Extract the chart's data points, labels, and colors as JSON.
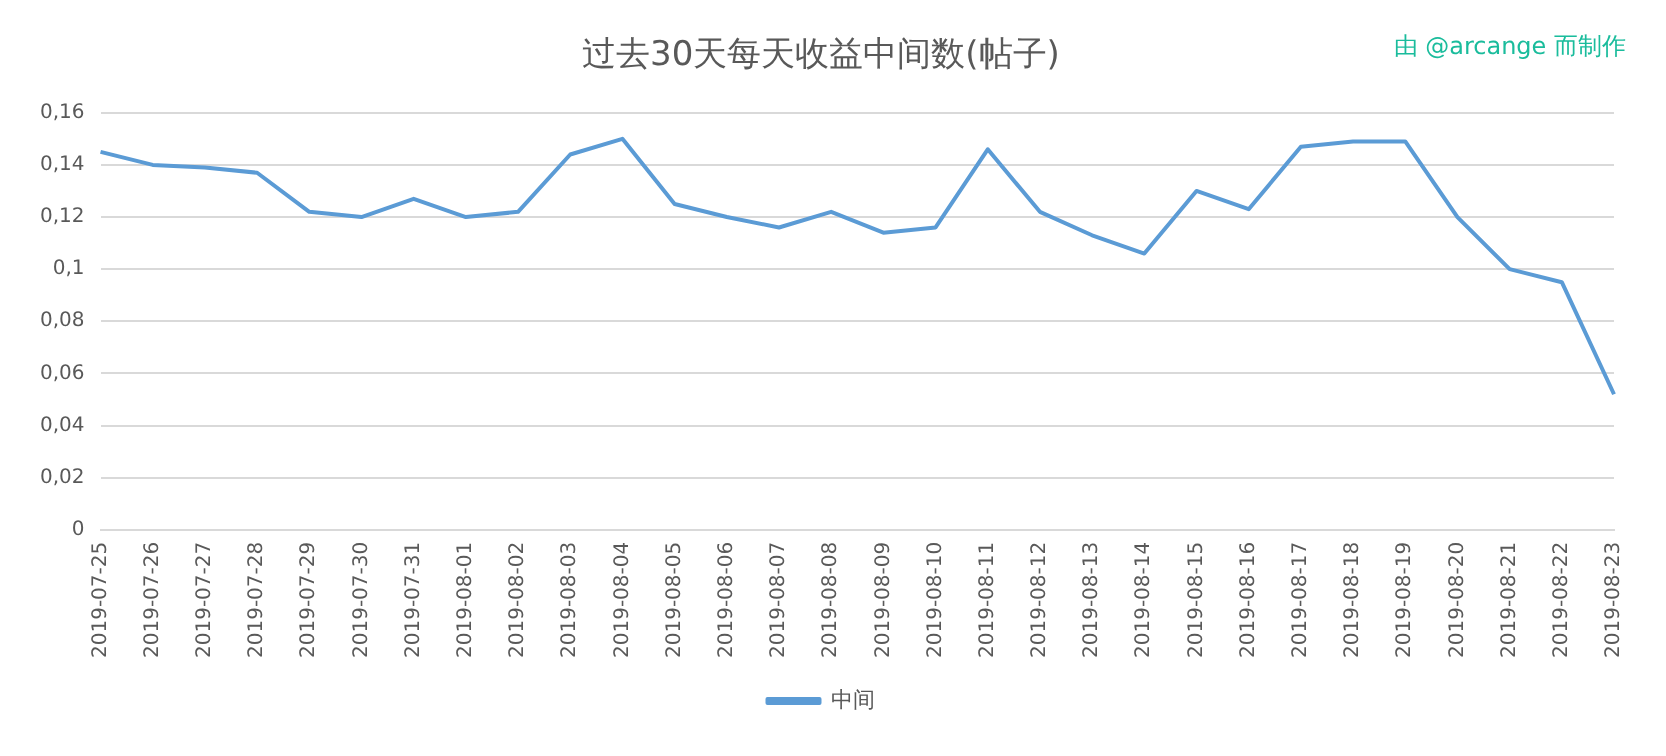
{
  "chart_data": {
    "type": "line",
    "title": "过去30天每天收益中间数(帖子)",
    "annotations": [
      "由 @arcange 而制作"
    ],
    "categories": [
      "2019-07-25",
      "2019-07-26",
      "2019-07-27",
      "2019-07-28",
      "2019-07-29",
      "2019-07-30",
      "2019-07-31",
      "2019-08-01",
      "2019-08-02",
      "2019-08-03",
      "2019-08-04",
      "2019-08-05",
      "2019-08-06",
      "2019-08-07",
      "2019-08-08",
      "2019-08-09",
      "2019-08-10",
      "2019-08-11",
      "2019-08-12",
      "2019-08-13",
      "2019-08-14",
      "2019-08-15",
      "2019-08-16",
      "2019-08-17",
      "2019-08-18",
      "2019-08-19",
      "2019-08-20",
      "2019-08-21",
      "2019-08-22",
      "2019-08-23"
    ],
    "series": [
      {
        "name": "中间",
        "color": "#5b9bd5",
        "values": [
          0.145,
          0.14,
          0.139,
          0.137,
          0.122,
          0.12,
          0.127,
          0.12,
          0.122,
          0.144,
          0.15,
          0.125,
          0.12,
          0.116,
          0.122,
          0.114,
          0.116,
          0.146,
          0.122,
          0.113,
          0.106,
          0.13,
          0.123,
          0.147,
          0.149,
          0.149,
          0.12,
          0.1,
          0.095,
          0.052
        ]
      }
    ],
    "ylim": [
      0,
      0.16
    ],
    "yticks": [
      {
        "value": 0,
        "label": "0"
      },
      {
        "value": 0.02,
        "label": "0,02"
      },
      {
        "value": 0.04,
        "label": "0,04"
      },
      {
        "value": 0.06,
        "label": "0,06"
      },
      {
        "value": 0.08,
        "label": "0,08"
      },
      {
        "value": 0.1,
        "label": "0,1"
      },
      {
        "value": 0.12,
        "label": "0,12"
      },
      {
        "value": 0.14,
        "label": "0,14"
      },
      {
        "value": 0.16,
        "label": "0,16"
      }
    ],
    "grid": "y",
    "legend": "bottom",
    "marker": "none",
    "line_style": "solid"
  }
}
